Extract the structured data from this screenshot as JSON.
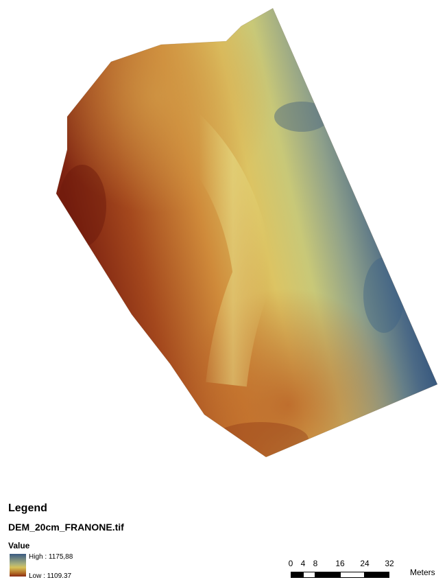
{
  "legend": {
    "title": "Legend",
    "layer_name": "DEM_20cm_FRANONE.tif",
    "value_label": "Value",
    "high_label": "High : 1175,88",
    "low_label": "Low : 1109.37",
    "high_value": 1175.88,
    "low_value": 1109.37,
    "ramp_colors": [
      "#3a5a82",
      "#a9b17c",
      "#d6c25a",
      "#b06a24",
      "#8a2a12"
    ]
  },
  "scalebar": {
    "ticks": [
      "0",
      "4",
      "8",
      "16",
      "24",
      "32"
    ],
    "unit": "Meters"
  }
}
